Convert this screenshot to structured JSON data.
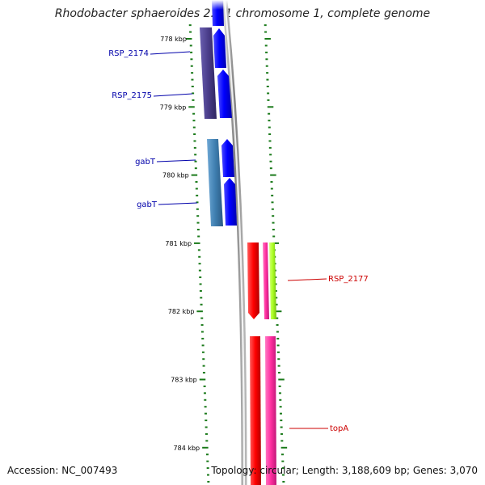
{
  "title": "Rhodobacter sphaeroides 2.4.1 chromosome 1, complete genome",
  "footer": {
    "accession": "Accession: NC_007493",
    "topology": "Topology: circular; Length: 3,188,609 bp; Genes: 3,070"
  },
  "scale": {
    "unit": "kbp",
    "major_ticks": [
      778,
      779,
      780,
      781,
      782,
      783,
      784
    ],
    "tick_labels": [
      "778 kbp",
      "779 kbp",
      "780 kbp",
      "781 kbp",
      "782 kbp",
      "783 kbp",
      "784 kbp"
    ]
  },
  "genes": [
    {
      "label": "RSP_2174",
      "color": "#0000bb"
    },
    {
      "label": "RSP_2175",
      "color": "#0000bb"
    },
    {
      "label": "gabT",
      "color": "#0000bb"
    },
    {
      "label": "gabT",
      "color": "#0000bb"
    },
    {
      "label": "RSP_2177",
      "color": "#dd0000"
    },
    {
      "label": "topA",
      "color": "#dd0000"
    }
  ],
  "colors": {
    "scale_green": "#1a7a1a",
    "forward_cds": "#0000ee",
    "forward_gene_dark": "#4a3d8a",
    "forward_gene_steel": "#3f7fb0",
    "reverse_cds": "#ff0000",
    "reverse_gene_pink": "#ff2fa0",
    "reverse_gene_lime": "#aaff22",
    "backbone": "#8a8a8a"
  }
}
